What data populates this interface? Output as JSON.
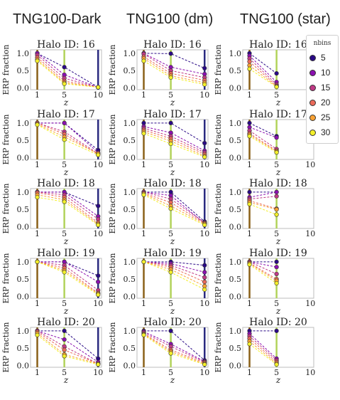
{
  "column_titles": [
    "TNG100-Dark",
    "TNG100 (dm)",
    "TNG100 (star)"
  ],
  "legend": {
    "title": "nbins",
    "entries": [
      {
        "label": "5",
        "color": "#2a0a86"
      },
      {
        "label": "10",
        "color": "#8b10b0"
      },
      {
        "label": "15",
        "color": "#c03a86"
      },
      {
        "label": "20",
        "color": "#ea6a5a"
      },
      {
        "label": "25",
        "color": "#f9a235"
      },
      {
        "label": "30",
        "color": "#f4f02a"
      }
    ]
  },
  "chart_data": [
    {
      "type": "line",
      "title": "Halo ID: 16",
      "column": "TNG100-Dark",
      "xlabel": "z",
      "ylabel": "ERP fraction",
      "xticks": [
        1,
        5,
        10
      ],
      "yticks": [
        0.0,
        0.5,
        1.0
      ],
      "xlim": [
        0,
        10.5
      ],
      "ylim": [
        -0.05,
        1.1
      ],
      "series": [
        {
          "values": [
            1.0,
            0.6,
            0.02
          ]
        },
        {
          "values": [
            1.0,
            0.38,
            0.02
          ]
        },
        {
          "values": [
            0.95,
            0.28,
            0.02
          ]
        },
        {
          "values": [
            0.88,
            0.2,
            0.02
          ]
        },
        {
          "values": [
            0.82,
            0.15,
            0.02
          ]
        },
        {
          "values": [
            0.78,
            0.12,
            0.02
          ]
        }
      ]
    },
    {
      "type": "line",
      "title": "Halo ID: 16",
      "column": "TNG100 (dm)",
      "xlabel": "z",
      "ylabel": "ERP fraction",
      "xticks": [
        1,
        5,
        10
      ],
      "yticks": [
        0.0,
        0.5,
        1.0
      ],
      "xlim": [
        0,
        10.5
      ],
      "ylim": [
        -0.05,
        1.1
      ],
      "series": [
        {
          "values": [
            1.0,
            0.99,
            0.57
          ]
        },
        {
          "values": [
            1.0,
            0.6,
            0.4
          ]
        },
        {
          "values": [
            0.98,
            0.5,
            0.3
          ]
        },
        {
          "values": [
            0.9,
            0.42,
            0.22
          ]
        },
        {
          "values": [
            0.85,
            0.35,
            0.15
          ]
        },
        {
          "values": [
            0.78,
            0.3,
            0.1
          ]
        }
      ]
    },
    {
      "type": "line",
      "title": "Halo ID: 16",
      "column": "TNG100 (star)",
      "xlabel": "z",
      "ylabel": "ERP fraction",
      "xticks": [
        1,
        5,
        10
      ],
      "yticks": [
        0.0,
        0.5,
        1.0
      ],
      "xlim": [
        0,
        10.5
      ],
      "ylim": [
        -0.05,
        1.1
      ],
      "series": [
        {
          "values": [
            1.0,
            0.42
          ]
        },
        {
          "values": [
            0.93,
            0.17
          ]
        },
        {
          "values": [
            0.85,
            0.1
          ]
        },
        {
          "values": [
            0.76,
            0.06
          ]
        },
        {
          "values": [
            0.65,
            0.04
          ]
        },
        {
          "values": [
            0.55,
            0.03
          ]
        }
      ]
    },
    {
      "type": "line",
      "title": "Halo ID: 17",
      "column": "TNG100-Dark",
      "xlabel": "z",
      "ylabel": "ERP fraction",
      "xticks": [
        1,
        5,
        10
      ],
      "yticks": [
        0.0,
        0.5,
        1.0
      ],
      "xlim": [
        0,
        10.5
      ],
      "ylim": [
        -0.05,
        1.1
      ],
      "series": [
        {
          "values": [
            1.0,
            1.0,
            0.22
          ]
        },
        {
          "values": [
            1.0,
            1.0,
            0.15
          ]
        },
        {
          "values": [
            1.0,
            0.75,
            0.12
          ]
        },
        {
          "values": [
            1.0,
            0.68,
            0.1
          ]
        },
        {
          "values": [
            0.97,
            0.6,
            0.12
          ]
        },
        {
          "values": [
            0.95,
            0.52,
            0.08
          ]
        }
      ]
    },
    {
      "type": "line",
      "title": "Halo ID: 17",
      "column": "TNG100 (dm)",
      "xlabel": "z",
      "ylabel": "ERP fraction",
      "xticks": [
        1,
        5,
        10
      ],
      "yticks": [
        0.0,
        0.5,
        1.0
      ],
      "xlim": [
        0,
        10.5
      ],
      "ylim": [
        -0.05,
        1.1
      ],
      "series": [
        {
          "values": [
            1.0,
            1.0,
            0.42
          ]
        },
        {
          "values": [
            0.9,
            0.72,
            0.2
          ]
        },
        {
          "values": [
            0.85,
            0.62,
            0.15
          ]
        },
        {
          "values": [
            0.8,
            0.55,
            0.1
          ]
        },
        {
          "values": [
            0.75,
            0.48,
            0.05
          ]
        },
        {
          "values": [
            0.7,
            0.4,
            0.02
          ]
        }
      ]
    },
    {
      "type": "line",
      "title": "Halo ID: 17",
      "column": "TNG100 (star)",
      "xlabel": "z",
      "ylabel": "ERP fraction",
      "xticks": [
        1,
        5,
        10
      ],
      "yticks": [
        0.0,
        0.5,
        1.0
      ],
      "xlim": [
        0,
        10.5
      ],
      "ylim": [
        -0.05,
        1.1
      ],
      "series": [
        {
          "values": [
            1.0,
            0.62
          ]
        },
        {
          "values": [
            0.88,
            0.58
          ]
        },
        {
          "values": [
            0.78,
            0.25
          ]
        },
        {
          "values": [
            0.7,
            0.2
          ]
        },
        {
          "values": [
            0.66,
            0.18
          ]
        },
        {
          "values": [
            0.62,
            0.15
          ]
        }
      ]
    },
    {
      "type": "line",
      "title": "Halo ID: 18",
      "column": "TNG100-Dark",
      "xlabel": "z",
      "ylabel": "ERP fraction",
      "xticks": [
        1,
        5,
        10
      ],
      "yticks": [
        0.0,
        0.5,
        1.0
      ],
      "xlim": [
        0,
        10.5
      ],
      "ylim": [
        -0.05,
        1.1
      ],
      "series": [
        {
          "values": [
            1.0,
            1.0,
            0.6
          ]
        },
        {
          "values": [
            1.0,
            1.0,
            0.3
          ]
        },
        {
          "values": [
            1.0,
            0.92,
            0.22
          ]
        },
        {
          "values": [
            0.98,
            0.85,
            0.12
          ]
        },
        {
          "values": [
            0.92,
            0.78,
            0.08
          ]
        },
        {
          "values": [
            0.85,
            0.72,
            0.05
          ]
        }
      ]
    },
    {
      "type": "line",
      "title": "Halo ID: 18",
      "column": "TNG100 (dm)",
      "xlabel": "z",
      "ylabel": "ERP fraction",
      "xticks": [
        1,
        5,
        10
      ],
      "yticks": [
        0.0,
        0.5,
        1.0
      ],
      "xlim": [
        0,
        10.5
      ],
      "ylim": [
        -0.05,
        1.1
      ],
      "series": [
        {
          "values": [
            1.0,
            1.0,
            0.15
          ]
        },
        {
          "values": [
            1.0,
            0.9,
            0.1
          ]
        },
        {
          "values": [
            1.0,
            0.8,
            0.12
          ]
        },
        {
          "values": [
            0.97,
            0.7,
            0.1
          ]
        },
        {
          "values": [
            0.95,
            0.6,
            0.08
          ]
        },
        {
          "values": [
            0.92,
            0.52,
            0.05
          ]
        }
      ]
    },
    {
      "type": "line",
      "title": "Halo ID: 18",
      "column": "TNG100 (star)",
      "xlabel": "z",
      "ylabel": "ERP fraction",
      "xticks": [
        1,
        5,
        10
      ],
      "yticks": [
        0.0,
        0.5,
        1.0
      ],
      "xlim": [
        0,
        10.5
      ],
      "ylim": [
        -0.05,
        1.1
      ],
      "series": [
        {
          "values": [
            1.0,
            1.0
          ]
        },
        {
          "values": [
            0.85,
            1.0
          ]
        },
        {
          "values": [
            0.8,
            0.88
          ]
        },
        {
          "values": [
            0.75,
            0.52
          ]
        },
        {
          "values": [
            0.7,
            0.5
          ]
        },
        {
          "values": [
            0.65,
            0.35
          ]
        }
      ]
    },
    {
      "type": "line",
      "title": "Halo ID: 19",
      "column": "TNG100-Dark",
      "xlabel": "z",
      "ylabel": "ERP fraction",
      "xticks": [
        1,
        5,
        10
      ],
      "yticks": [
        0.0,
        0.5,
        1.0
      ],
      "xlim": [
        0,
        10.5
      ],
      "ylim": [
        -0.05,
        1.1
      ],
      "series": [
        {
          "values": [
            1.0,
            1.0,
            0.6
          ]
        },
        {
          "values": [
            1.0,
            1.0,
            0.42
          ]
        },
        {
          "values": [
            1.0,
            0.9,
            0.18
          ]
        },
        {
          "values": [
            1.0,
            0.82,
            0.1
          ]
        },
        {
          "values": [
            1.0,
            0.75,
            0.08
          ]
        },
        {
          "values": [
            1.0,
            0.7,
            0.05
          ]
        }
      ]
    },
    {
      "type": "line",
      "title": "Halo ID: 19",
      "column": "TNG100 (dm)",
      "xlabel": "z",
      "ylabel": "ERP fraction",
      "xticks": [
        1,
        5,
        10
      ],
      "yticks": [
        0.0,
        0.5,
        1.0
      ],
      "xlim": [
        0,
        10.5
      ],
      "ylim": [
        -0.05,
        1.1
      ],
      "series": [
        {
          "values": [
            1.0,
            1.0,
            0.9
          ]
        },
        {
          "values": [
            1.0,
            0.95,
            0.7
          ]
        },
        {
          "values": [
            1.0,
            0.9,
            0.55
          ]
        },
        {
          "values": [
            1.0,
            0.85,
            0.42
          ]
        },
        {
          "values": [
            1.0,
            0.78,
            0.3
          ]
        },
        {
          "values": [
            1.0,
            0.7,
            0.2
          ]
        }
      ]
    },
    {
      "type": "line",
      "title": "Halo ID: 19",
      "column": "TNG100 (star)",
      "xlabel": "z",
      "ylabel": "ERP fraction",
      "xticks": [
        1,
        5,
        10
      ],
      "yticks": [
        0.0,
        0.5,
        1.0
      ],
      "xlim": [
        0,
        10.5
      ],
      "ylim": [
        -0.05,
        1.1
      ],
      "series": [
        {
          "values": [
            1.0,
            1.0
          ]
        },
        {
          "values": [
            1.0,
            0.85
          ]
        },
        {
          "values": [
            1.0,
            0.65
          ]
        },
        {
          "values": [
            0.97,
            0.5
          ]
        },
        {
          "values": [
            0.95,
            0.45
          ]
        },
        {
          "values": [
            0.92,
            0.38
          ]
        }
      ]
    },
    {
      "type": "line",
      "title": "Halo ID: 20",
      "column": "TNG100-Dark",
      "xlabel": "z",
      "ylabel": "ERP fraction",
      "xticks": [
        1,
        5,
        10
      ],
      "yticks": [
        0.0,
        0.5,
        1.0
      ],
      "xlim": [
        0,
        10.5
      ],
      "ylim": [
        -0.05,
        1.1
      ],
      "series": [
        {
          "values": [
            1.0,
            1.0,
            0.2
          ]
        },
        {
          "values": [
            1.0,
            0.75,
            0.1
          ]
        },
        {
          "values": [
            1.0,
            0.55,
            0.05
          ]
        },
        {
          "values": [
            0.97,
            0.45,
            0.05
          ]
        },
        {
          "values": [
            0.93,
            0.32,
            0.05
          ]
        },
        {
          "values": [
            0.88,
            0.27,
            0.03
          ]
        }
      ]
    },
    {
      "type": "line",
      "title": "Halo ID: 20",
      "column": "TNG100 (dm)",
      "xlabel": "z",
      "ylabel": "ERP fraction",
      "xticks": [
        1,
        5,
        10
      ],
      "yticks": [
        0.0,
        0.5,
        1.0
      ],
      "xlim": [
        0,
        10.5
      ],
      "ylim": [
        -0.05,
        1.1
      ],
      "series": [
        {
          "values": [
            1.0,
            1.0,
            0.15
          ]
        },
        {
          "values": [
            0.98,
            0.62,
            0.12
          ]
        },
        {
          "values": [
            0.95,
            0.55,
            0.1
          ]
        },
        {
          "values": [
            0.92,
            0.45,
            0.08
          ]
        },
        {
          "values": [
            0.9,
            0.4,
            0.05
          ]
        },
        {
          "values": [
            0.88,
            0.35,
            0.03
          ]
        }
      ]
    },
    {
      "type": "line",
      "title": "Halo ID: 20",
      "column": "TNG100 (star)",
      "xlabel": "z",
      "ylabel": "ERP fraction",
      "xticks": [
        1,
        5,
        10
      ],
      "yticks": [
        0.0,
        0.5,
        1.0
      ],
      "xlim": [
        0,
        10.5
      ],
      "ylim": [
        -0.05,
        1.1
      ],
      "series": [
        {
          "values": [
            1.0,
            1.0
          ]
        },
        {
          "values": [
            0.92,
            0.2
          ]
        },
        {
          "values": [
            0.85,
            0.15
          ]
        },
        {
          "values": [
            0.78,
            0.1
          ]
        },
        {
          "values": [
            0.7,
            0.06
          ]
        },
        {
          "values": [
            0.62,
            0.03
          ]
        }
      ]
    }
  ]
}
